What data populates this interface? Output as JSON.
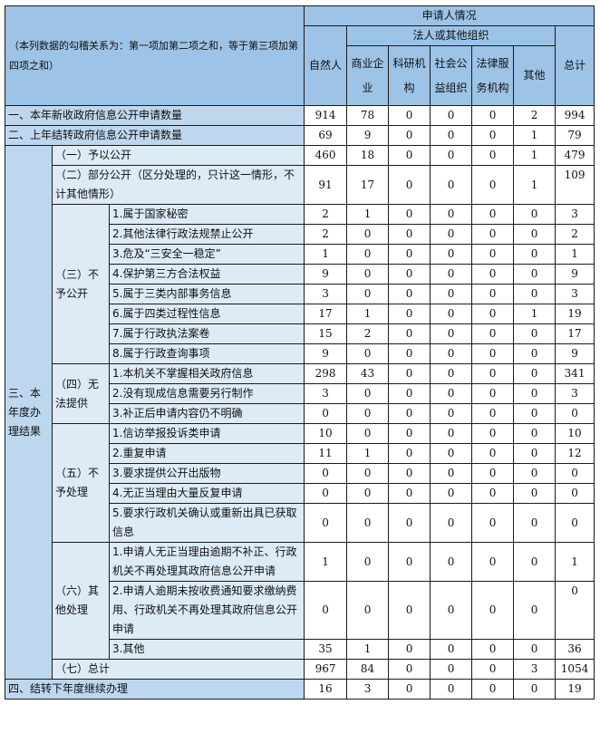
{
  "header": {
    "note": "（本列数据的勾稽关系为：第一项加第二项之和，等于第三项加第四项之和）",
    "applicant_situation": "申请人情况",
    "legal_org": "法人或其他组织",
    "columns": [
      "自然人",
      "商业企业",
      "科研机构",
      "社会公益组织",
      "法律服务机构",
      "其他",
      "总计"
    ]
  },
  "rows": [
    {
      "label": "一、本年新收政府信息公开申请数量",
      "values": [
        914,
        78,
        0,
        0,
        0,
        2,
        994
      ]
    },
    {
      "label": "二、上年结转政府信息公开申请数量",
      "values": [
        69,
        9,
        0,
        0,
        0,
        1,
        79
      ]
    }
  ],
  "section3": {
    "label": "三、本年度办理结果",
    "groups": [
      {
        "label": "（一）予以公开",
        "values": [
          460,
          18,
          0,
          0,
          0,
          1,
          479
        ]
      },
      {
        "label": "（二）部分公开（区分处理的，只计这一情形，不计其他情形）",
        "values": [
          91,
          17,
          0,
          0,
          0,
          1,
          109
        ]
      },
      {
        "label": "（三）不予公开",
        "items": [
          {
            "label": "1.属于国家秘密",
            "values": [
              2,
              1,
              0,
              0,
              0,
              0,
              3
            ]
          },
          {
            "label": "2.其他法律行政法规禁止公开",
            "values": [
              2,
              0,
              0,
              0,
              0,
              0,
              2
            ]
          },
          {
            "label": "3.危及“三安全一稳定”",
            "values": [
              1,
              0,
              0,
              0,
              0,
              0,
              1
            ]
          },
          {
            "label": "4.保护第三方合法权益",
            "values": [
              9,
              0,
              0,
              0,
              0,
              0,
              9
            ]
          },
          {
            "label": "5.属于三类内部事务信息",
            "values": [
              3,
              0,
              0,
              0,
              0,
              0,
              3
            ]
          },
          {
            "label": "6.属于四类过程性信息",
            "values": [
              17,
              1,
              0,
              0,
              0,
              1,
              19
            ]
          },
          {
            "label": "7.属于行政执法案卷",
            "values": [
              15,
              2,
              0,
              0,
              0,
              0,
              17
            ]
          },
          {
            "label": "8.属于行政查询事项",
            "values": [
              9,
              0,
              0,
              0,
              0,
              0,
              9
            ]
          }
        ]
      },
      {
        "label": "（四）无法提供",
        "items": [
          {
            "label": "1.本机关不掌握相关政府信息",
            "values": [
              298,
              43,
              0,
              0,
              0,
              0,
              341
            ]
          },
          {
            "label": "2.没有现成信息需要另行制作",
            "values": [
              3,
              0,
              0,
              0,
              0,
              0,
              3
            ]
          },
          {
            "label": "3.补正后申请内容仍不明确",
            "values": [
              0,
              0,
              0,
              0,
              0,
              0,
              0
            ]
          }
        ]
      },
      {
        "label": "（五）不予处理",
        "items": [
          {
            "label": "1.信访举报投诉类申请",
            "values": [
              10,
              0,
              0,
              0,
              0,
              0,
              10
            ]
          },
          {
            "label": "2.重复申请",
            "values": [
              11,
              1,
              0,
              0,
              0,
              0,
              12
            ]
          },
          {
            "label": "3.要求提供公开出版物",
            "values": [
              0,
              0,
              0,
              0,
              0,
              0,
              0
            ]
          },
          {
            "label": "4.无正当理由大量反复申请",
            "values": [
              0,
              0,
              0,
              0,
              0,
              0,
              0
            ]
          },
          {
            "label": "5.要求行政机关确认或重新出具已获取信息",
            "values": [
              0,
              0,
              0,
              0,
              0,
              0,
              0
            ]
          }
        ]
      },
      {
        "label": "（六）其他处理",
        "items": [
          {
            "label": "1.申请人无正当理由逾期不补正、行政机关不再处理其政府信息公开申请",
            "values": [
              1,
              0,
              0,
              0,
              0,
              0,
              1
            ]
          },
          {
            "label": "2.申请人逾期未按收费通知要求缴纳费用、行政机关不再处理其政府信息公开申请",
            "values": [
              0,
              0,
              0,
              0,
              0,
              0,
              0
            ]
          },
          {
            "label": "3.其他",
            "values": [
              35,
              1,
              0,
              0,
              0,
              0,
              36
            ]
          }
        ]
      },
      {
        "label": "（七）总计",
        "values": [
          967,
          84,
          0,
          0,
          0,
          3,
          1054
        ]
      }
    ]
  },
  "footer_row": {
    "label": "四、结转下年度继续办理",
    "values": [
      16,
      3,
      0,
      0,
      0,
      0,
      19
    ]
  },
  "colors": {
    "header": "#9dc3e6",
    "row_header": "#bdd7ee",
    "sub_header": "#ddebf7"
  }
}
